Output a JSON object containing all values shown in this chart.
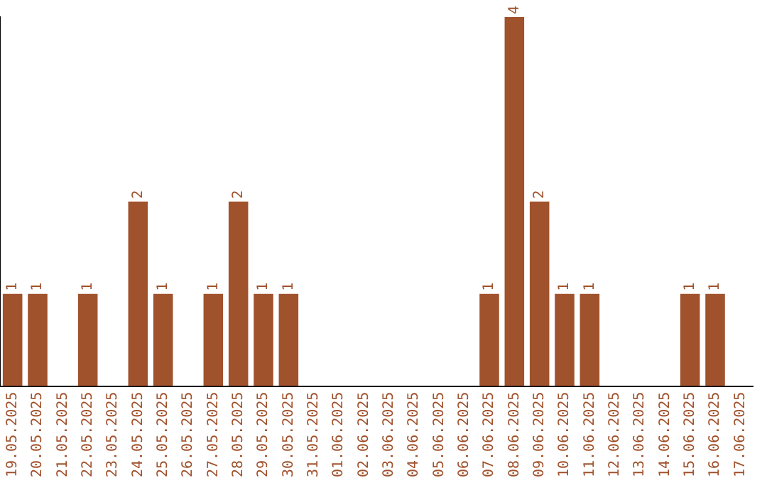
{
  "chart_data": {
    "type": "bar",
    "categories": [
      "19.05.2025",
      "20.05.2025",
      "21.05.2025",
      "22.05.2025",
      "23.05.2025",
      "24.05.2025",
      "25.05.2025",
      "26.05.2025",
      "27.05.2025",
      "28.05.2025",
      "29.05.2025",
      "30.05.2025",
      "31.05.2025",
      "01.06.2025",
      "02.06.2025",
      "03.06.2025",
      "04.06.2025",
      "05.06.2025",
      "06.06.2025",
      "07.06.2025",
      "08.06.2025",
      "09.06.2025",
      "10.06.2025",
      "11.06.2025",
      "12.06.2025",
      "13.06.2025",
      "14.06.2025",
      "15.06.2025",
      "16.06.2025",
      "17.06.2025"
    ],
    "values": [
      1,
      1,
      0,
      1,
      0,
      2,
      1,
      0,
      1,
      2,
      1,
      1,
      0,
      0,
      0,
      0,
      0,
      0,
      0,
      1,
      4,
      2,
      1,
      1,
      0,
      0,
      0,
      1,
      1,
      0
    ],
    "value_labels": [
      "1",
      "1",
      null,
      "1",
      null,
      "2",
      "1",
      null,
      "1",
      "2",
      "1",
      "1",
      null,
      null,
      null,
      null,
      null,
      null,
      null,
      "1",
      "4",
      "2",
      "1",
      "1",
      null,
      null,
      null,
      "1",
      "1",
      null
    ],
    "color": "#a0522d",
    "grid": false,
    "legend": false
  }
}
